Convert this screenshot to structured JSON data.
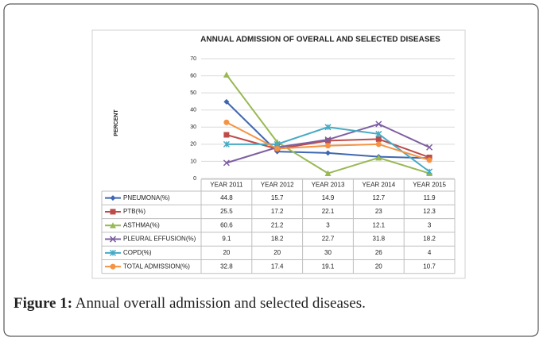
{
  "chart_data": {
    "type": "line",
    "title": "ANNUAL ADMISSION OF OVERALL AND SELECTED DISEASES",
    "y_label": "PERCENT",
    "categories": [
      "YEAR 2011",
      "YEAR 2012",
      "YEAR 2013",
      "YEAR 2014",
      "YEAR 2015"
    ],
    "series": [
      {
        "name": "PNEUMONA(%)",
        "color": "#3f67b1",
        "marker": "diamond",
        "values": [
          44.8,
          15.7,
          14.9,
          12.7,
          11.9
        ]
      },
      {
        "name": "PTB(%)",
        "color": "#be4b48",
        "marker": "square",
        "values": [
          25.5,
          17.2,
          22.1,
          23,
          12.3
        ]
      },
      {
        "name": "ASTHMA(%)",
        "color": "#98b954",
        "marker": "triangle",
        "values": [
          60.6,
          21.2,
          3,
          12.1,
          3
        ]
      },
      {
        "name": "PLEURAL EFFUSION(%)",
        "color": "#7d5fa0",
        "marker": "x",
        "values": [
          9.1,
          18.2,
          22.7,
          31.8,
          18.2
        ]
      },
      {
        "name": "COPD(%)",
        "color": "#46aac4",
        "marker": "star",
        "values": [
          20,
          20,
          30,
          26,
          4
        ]
      },
      {
        "name": "TOTAL ADMISSION(%)",
        "color": "#f59342",
        "marker": "circle",
        "values": [
          32.8,
          17.4,
          19.1,
          20,
          10.7
        ]
      }
    ],
    "ylim": [
      0,
      70
    ],
    "yticks": [
      0,
      10,
      20,
      30,
      40,
      50,
      60,
      70
    ],
    "grid": true
  },
  "caption": {
    "label": "Figure 1:",
    "text": "Annual overall admission and selected diseases."
  }
}
